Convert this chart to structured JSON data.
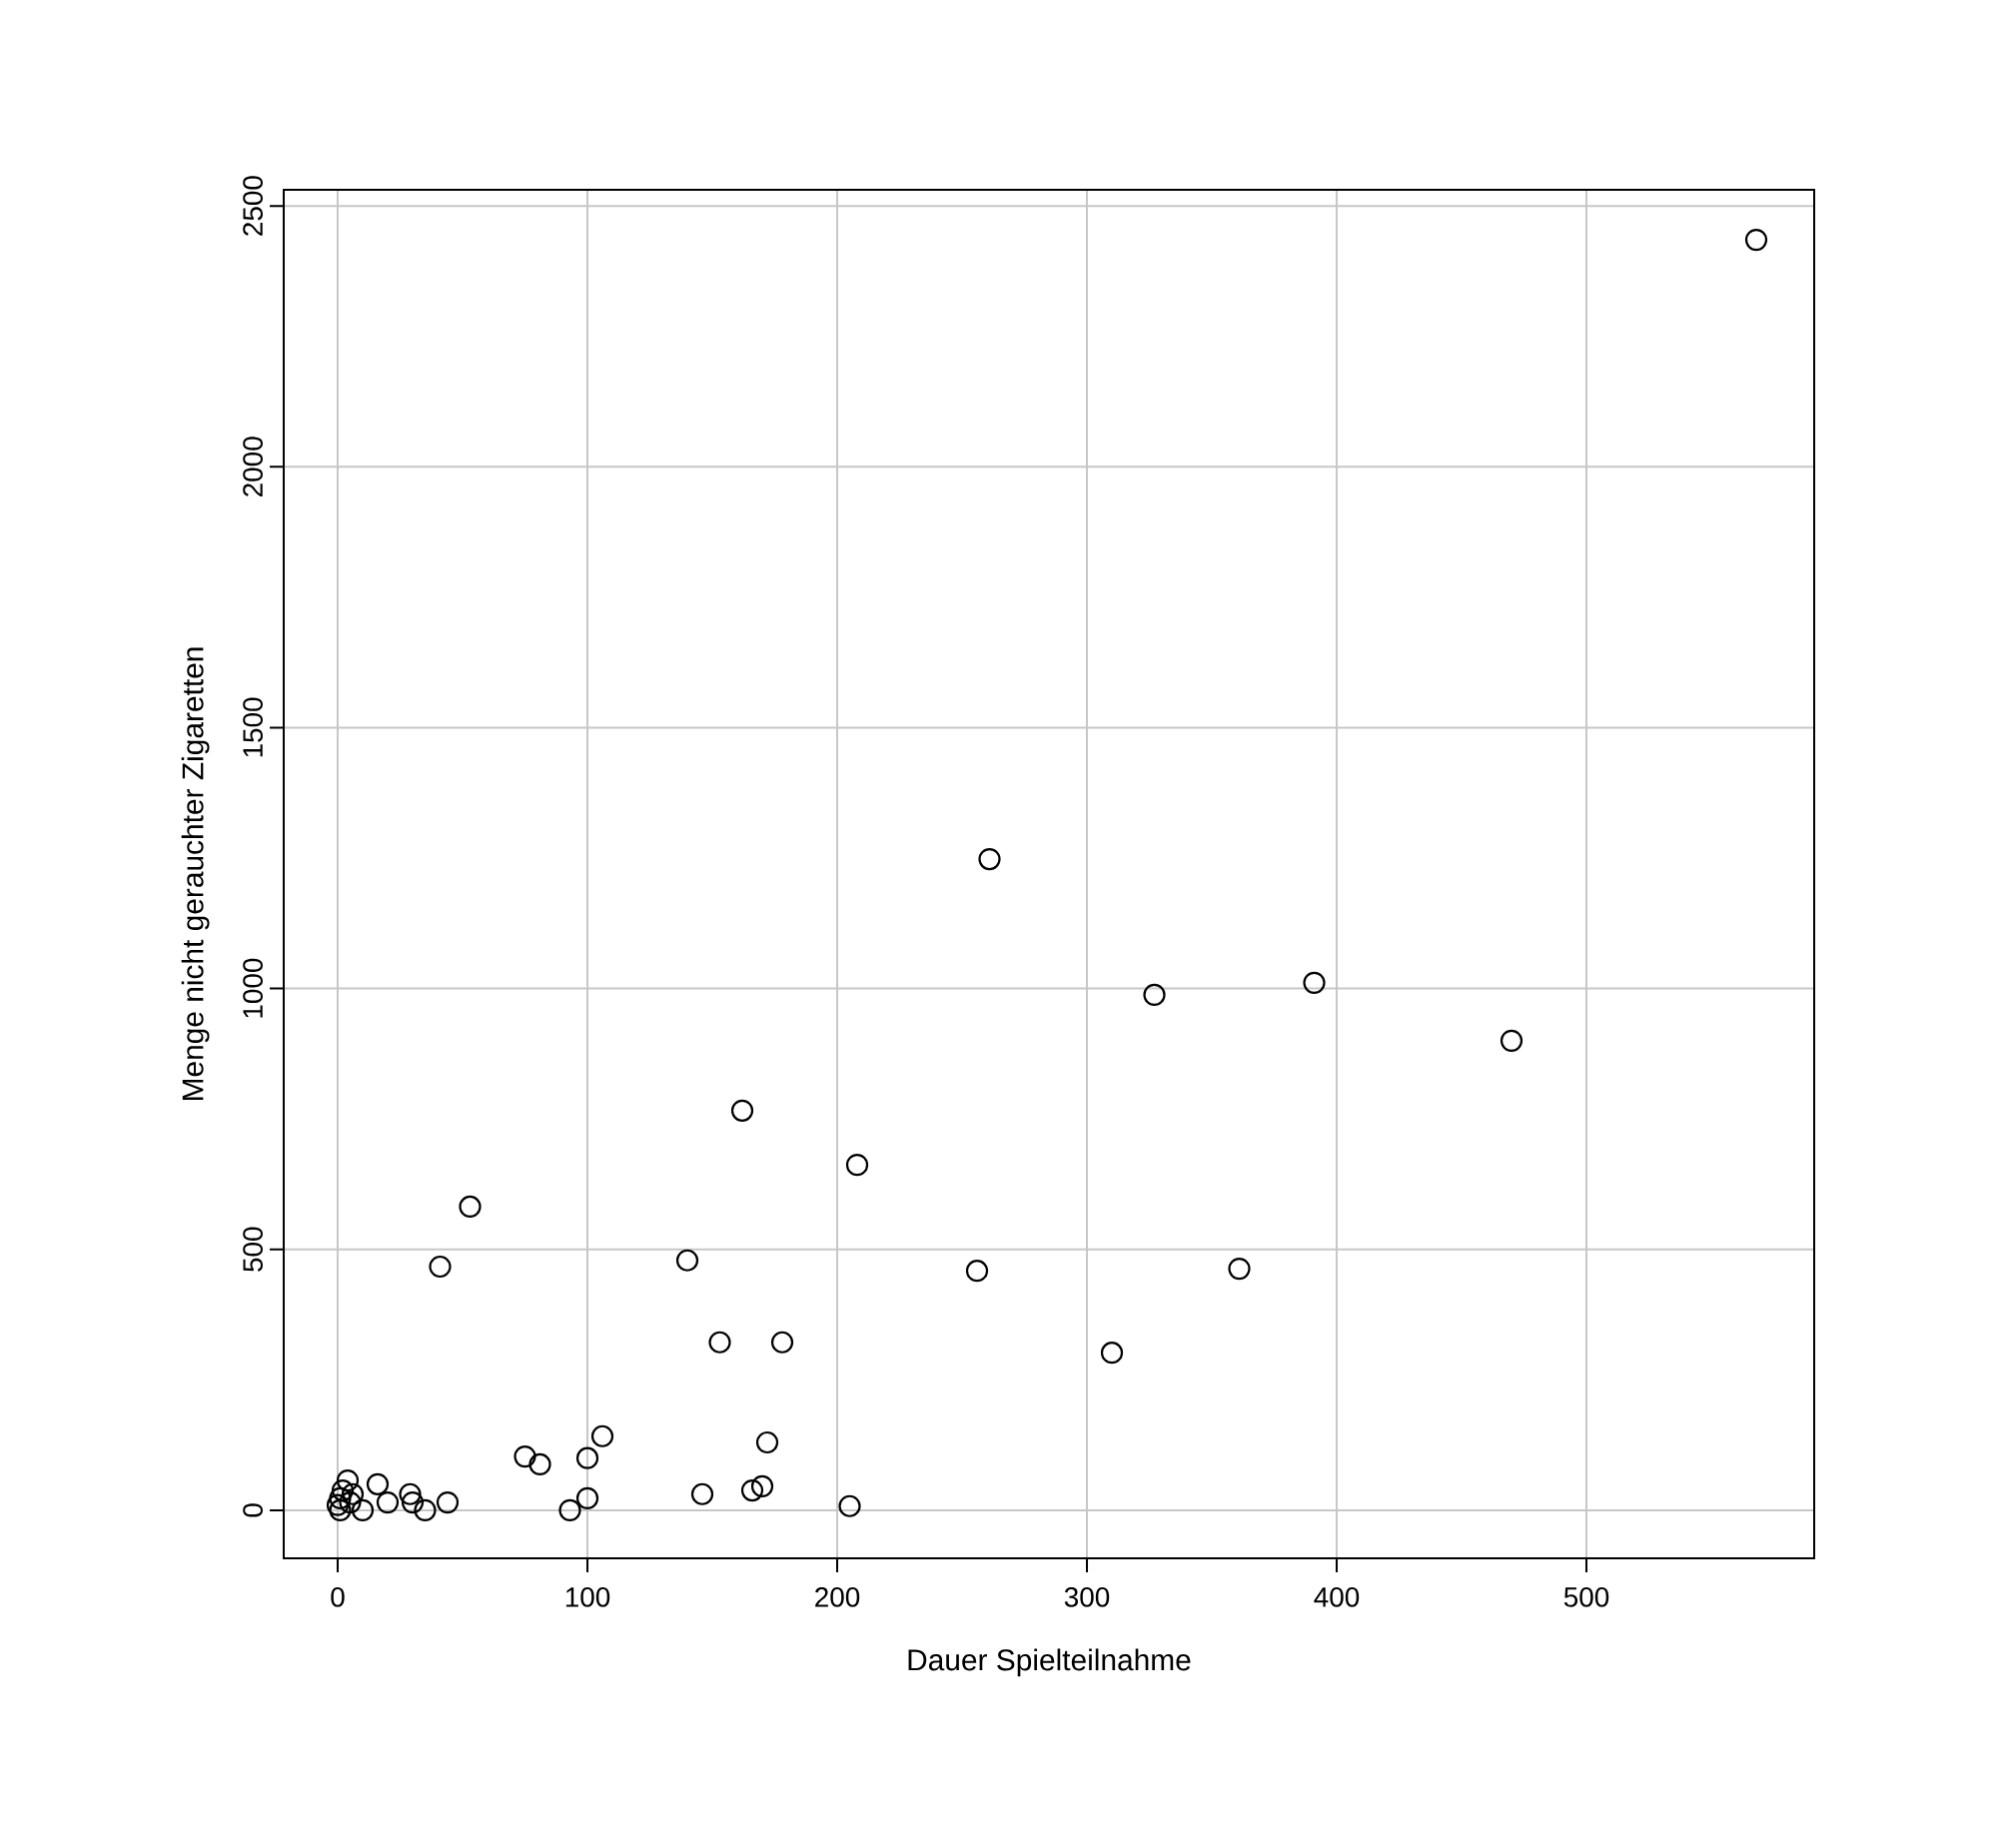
{
  "chart_data": {
    "type": "scatter",
    "xlabel": "Dauer Spielteilnahme",
    "ylabel": "Menge nicht gerauchter Zigaretten",
    "x": [
      568,
      261,
      327,
      391,
      470,
      162,
      208,
      53,
      41,
      140,
      256,
      361,
      153,
      178,
      310,
      75,
      81,
      100,
      106,
      172,
      146,
      166,
      170,
      93,
      100,
      205,
      16,
      4,
      20,
      29,
      30,
      35,
      44,
      10,
      1,
      1,
      2,
      5,
      0,
      6
    ],
    "values": [
      2435,
      1248,
      988,
      1011,
      900,
      766,
      662,
      582,
      467,
      479,
      459,
      463,
      322,
      322,
      302,
      103,
      88,
      100,
      142,
      130,
      31,
      38,
      46,
      0,
      23,
      8,
      50,
      57,
      15,
      31,
      15,
      0,
      15,
      0,
      0,
      23,
      38,
      15,
      10,
      31
    ],
    "color": "#000000",
    "marker": "circle",
    "grid": true,
    "xlim": [
      -21.6,
      591.2
    ],
    "ylim": [
      -92,
      2531
    ],
    "xticks": [
      0,
      100,
      200,
      300,
      400,
      500
    ],
    "yticks": [
      0,
      500,
      1000,
      1500,
      2000,
      2500
    ]
  }
}
